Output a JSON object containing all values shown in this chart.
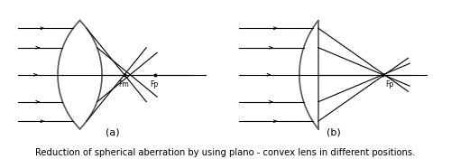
{
  "fig_width": 5.0,
  "fig_height": 1.76,
  "dpi": 100,
  "bg_color": "#ffffff",
  "line_color": "#000000",
  "lens_color": "#555555",
  "caption": "Reduction of spherical aberration by using plano - convex lens in different positions.",
  "caption_fontsize": 7.2,
  "label_a": "(a)",
  "label_b": "(b)",
  "label_fontsize": 8,
  "Fm_label": "Fm",
  "Fp_label": "Fp",
  "point_fontsize": 5.5
}
